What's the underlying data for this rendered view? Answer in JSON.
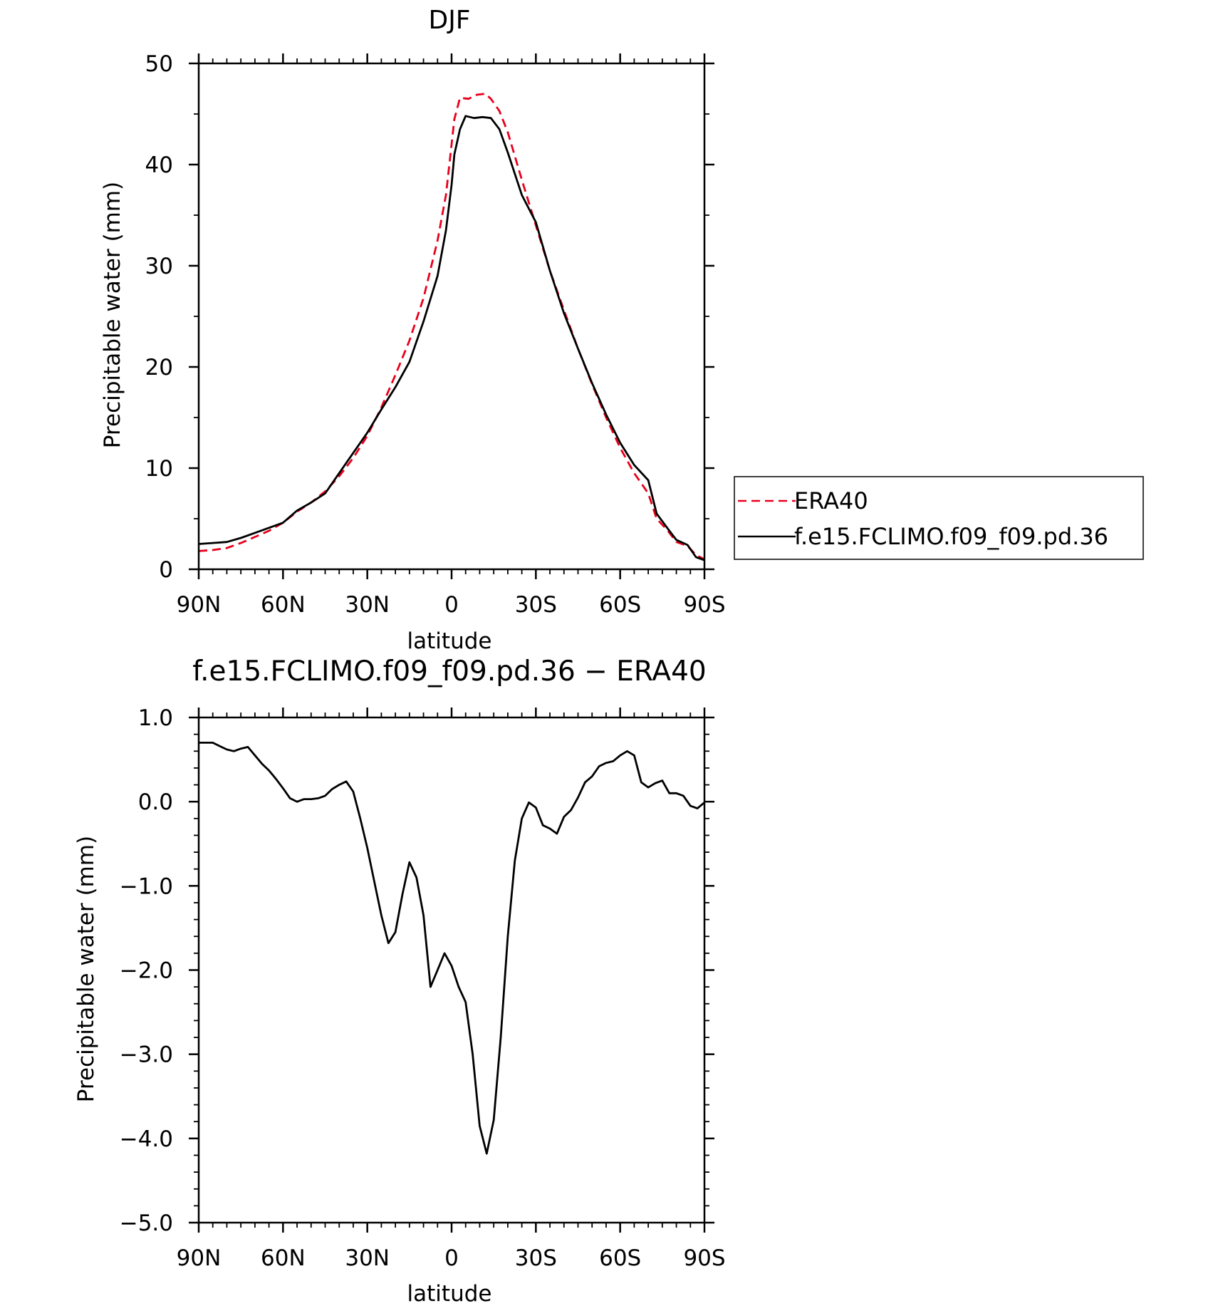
{
  "chart_data": [
    {
      "type": "line",
      "title": "DJF",
      "xlabel": "latitude",
      "ylabel": "Precipitable water (mm)",
      "xlim": [
        90,
        -90
      ],
      "ylim": [
        0,
        50
      ],
      "x_ticks": [
        90,
        60,
        30,
        0,
        -30,
        -60,
        -90
      ],
      "x_tick_labels": [
        "90N",
        "60N",
        "30N",
        "0",
        "30S",
        "60S",
        "90S"
      ],
      "y_ticks": [
        0,
        10,
        20,
        30,
        40,
        50
      ],
      "y_tick_labels": [
        "0",
        "10",
        "20",
        "30",
        "40",
        "50"
      ],
      "legend": "right",
      "series": [
        {
          "name": "ERA40",
          "color": "#e8001c",
          "style": "dashed",
          "points": [
            [
              90,
              1.8
            ],
            [
              85,
              1.9
            ],
            [
              80,
              2.1
            ],
            [
              75,
              2.6
            ],
            [
              70,
              3.2
            ],
            [
              65,
              3.8
            ],
            [
              60,
              4.6
            ],
            [
              55,
              5.7
            ],
            [
              50,
              6.6
            ],
            [
              45,
              7.7
            ],
            [
              40,
              9.2
            ],
            [
              35,
              11.0
            ],
            [
              30,
              13.2
            ],
            [
              25,
              16.0
            ],
            [
              20,
              19.2
            ],
            [
              15,
              22.6
            ],
            [
              10,
              26.8
            ],
            [
              5,
              32.5
            ],
            [
              2,
              37.0
            ],
            [
              0,
              42.0
            ],
            [
              -1,
              44.5
            ],
            [
              -3,
              46.6
            ],
            [
              -6,
              46.5
            ],
            [
              -9,
              46.9
            ],
            [
              -12,
              47.0
            ],
            [
              -14,
              46.5
            ],
            [
              -17,
              45.3
            ],
            [
              -20,
              43.2
            ],
            [
              -25,
              38.5
            ],
            [
              -30,
              34.0
            ],
            [
              -35,
              29.5
            ],
            [
              -40,
              25.6
            ],
            [
              -45,
              21.8
            ],
            [
              -50,
              18.3
            ],
            [
              -55,
              15.0
            ],
            [
              -60,
              12.0
            ],
            [
              -65,
              9.5
            ],
            [
              -70,
              7.5
            ],
            [
              -73,
              5.0
            ],
            [
              -77,
              3.8
            ],
            [
              -80,
              2.7
            ],
            [
              -84,
              2.3
            ],
            [
              -87,
              1.4
            ],
            [
              -90,
              1.0
            ]
          ]
        },
        {
          "name": "f.e15.FCLIMO.f09_f09.pd.36",
          "color": "#000000",
          "style": "solid",
          "points": [
            [
              90,
              2.5
            ],
            [
              85,
              2.6
            ],
            [
              80,
              2.7
            ],
            [
              75,
              3.1
            ],
            [
              70,
              3.6
            ],
            [
              65,
              4.1
            ],
            [
              60,
              4.6
            ],
            [
              55,
              5.8
            ],
            [
              50,
              6.6
            ],
            [
              45,
              7.5
            ],
            [
              40,
              9.5
            ],
            [
              35,
              11.5
            ],
            [
              30,
              13.5
            ],
            [
              25,
              15.8
            ],
            [
              20,
              18.0
            ],
            [
              15,
              20.5
            ],
            [
              10,
              24.5
            ],
            [
              5,
              29.0
            ],
            [
              2,
              33.5
            ],
            [
              0,
              38.0
            ],
            [
              -1,
              41.0
            ],
            [
              -3,
              43.5
            ],
            [
              -5,
              44.8
            ],
            [
              -8,
              44.6
            ],
            [
              -11,
              44.7
            ],
            [
              -14,
              44.6
            ],
            [
              -17,
              43.5
            ],
            [
              -20,
              41.2
            ],
            [
              -25,
              37.0
            ],
            [
              -30,
              34.3
            ],
            [
              -35,
              29.5
            ],
            [
              -40,
              25.3
            ],
            [
              -45,
              21.8
            ],
            [
              -50,
              18.4
            ],
            [
              -55,
              15.3
            ],
            [
              -60,
              12.5
            ],
            [
              -65,
              10.3
            ],
            [
              -70,
              8.8
            ],
            [
              -73,
              5.5
            ],
            [
              -77,
              4.0
            ],
            [
              -80,
              2.9
            ],
            [
              -84,
              2.4
            ],
            [
              -87,
              1.2
            ],
            [
              -90,
              0.9
            ]
          ]
        }
      ]
    },
    {
      "type": "line",
      "title": "f.e15.FCLIMO.f09_f09.pd.36 − ERA40",
      "xlabel": "latitude",
      "ylabel": "Precipitable water (mm)",
      "xlim": [
        90,
        -90
      ],
      "ylim": [
        -5,
        1
      ],
      "x_ticks": [
        90,
        60,
        30,
        0,
        -30,
        -60,
        -90
      ],
      "x_tick_labels": [
        "90N",
        "60N",
        "30N",
        "0",
        "30S",
        "60S",
        "90S"
      ],
      "y_ticks": [
        1,
        0,
        -1,
        -2,
        -3,
        -4,
        -5
      ],
      "y_tick_labels": [
        "1.0",
        "0.0",
        "−1.0",
        "−2.0",
        "−3.0",
        "−4.0",
        "−5.0"
      ],
      "series": [
        {
          "color": "#000000",
          "style": "solid",
          "points": [
            [
              90,
              0.7
            ],
            [
              87.5,
              0.7
            ],
            [
              85,
              0.7
            ],
            [
              82.5,
              0.66
            ],
            [
              80,
              0.62
            ],
            [
              77.5,
              0.6
            ],
            [
              75,
              0.63
            ],
            [
              72.5,
              0.65
            ],
            [
              70,
              0.55
            ],
            [
              67.5,
              0.45
            ],
            [
              65,
              0.37
            ],
            [
              62.5,
              0.27
            ],
            [
              60,
              0.16
            ],
            [
              57.5,
              0.04
            ],
            [
              55,
              0.0
            ],
            [
              52.5,
              0.03
            ],
            [
              50,
              0.03
            ],
            [
              47.5,
              0.04
            ],
            [
              45,
              0.07
            ],
            [
              42.5,
              0.15
            ],
            [
              40,
              0.2
            ],
            [
              37.5,
              0.24
            ],
            [
              35,
              0.12
            ],
            [
              32.5,
              -0.2
            ],
            [
              30,
              -0.55
            ],
            [
              27.5,
              -0.95
            ],
            [
              25,
              -1.35
            ],
            [
              22.5,
              -1.68
            ],
            [
              20,
              -1.55
            ],
            [
              17.5,
              -1.1
            ],
            [
              15,
              -0.72
            ],
            [
              12.5,
              -0.9
            ],
            [
              10,
              -1.35
            ],
            [
              7.5,
              -2.2
            ],
            [
              5,
              -2.0
            ],
            [
              2.5,
              -1.8
            ],
            [
              0,
              -1.95
            ],
            [
              -2.5,
              -2.2
            ],
            [
              -5,
              -2.38
            ],
            [
              -7.5,
              -3.0
            ],
            [
              -10,
              -3.85
            ],
            [
              -12.5,
              -4.18
            ],
            [
              -15,
              -3.78
            ],
            [
              -17.5,
              -2.8
            ],
            [
              -20,
              -1.6
            ],
            [
              -22.5,
              -0.7
            ],
            [
              -25,
              -0.2
            ],
            [
              -27.5,
              -0.01
            ],
            [
              -30,
              -0.07
            ],
            [
              -32.5,
              -0.28
            ],
            [
              -35,
              -0.32
            ],
            [
              -37.5,
              -0.38
            ],
            [
              -40,
              -0.18
            ],
            [
              -42.5,
              -0.1
            ],
            [
              -45,
              0.05
            ],
            [
              -47.5,
              0.23
            ],
            [
              -50,
              0.3
            ],
            [
              -52.5,
              0.42
            ],
            [
              -55,
              0.46
            ],
            [
              -57.5,
              0.48
            ],
            [
              -60,
              0.55
            ],
            [
              -62.5,
              0.6
            ],
            [
              -65,
              0.55
            ],
            [
              -67.5,
              0.23
            ],
            [
              -70,
              0.17
            ],
            [
              -72.5,
              0.22
            ],
            [
              -75,
              0.25
            ],
            [
              -77.5,
              0.1
            ],
            [
              -80,
              0.1
            ],
            [
              -82.5,
              0.07
            ],
            [
              -85,
              -0.05
            ],
            [
              -87.5,
              -0.08
            ],
            [
              -90,
              -0.01
            ]
          ]
        }
      ]
    }
  ]
}
